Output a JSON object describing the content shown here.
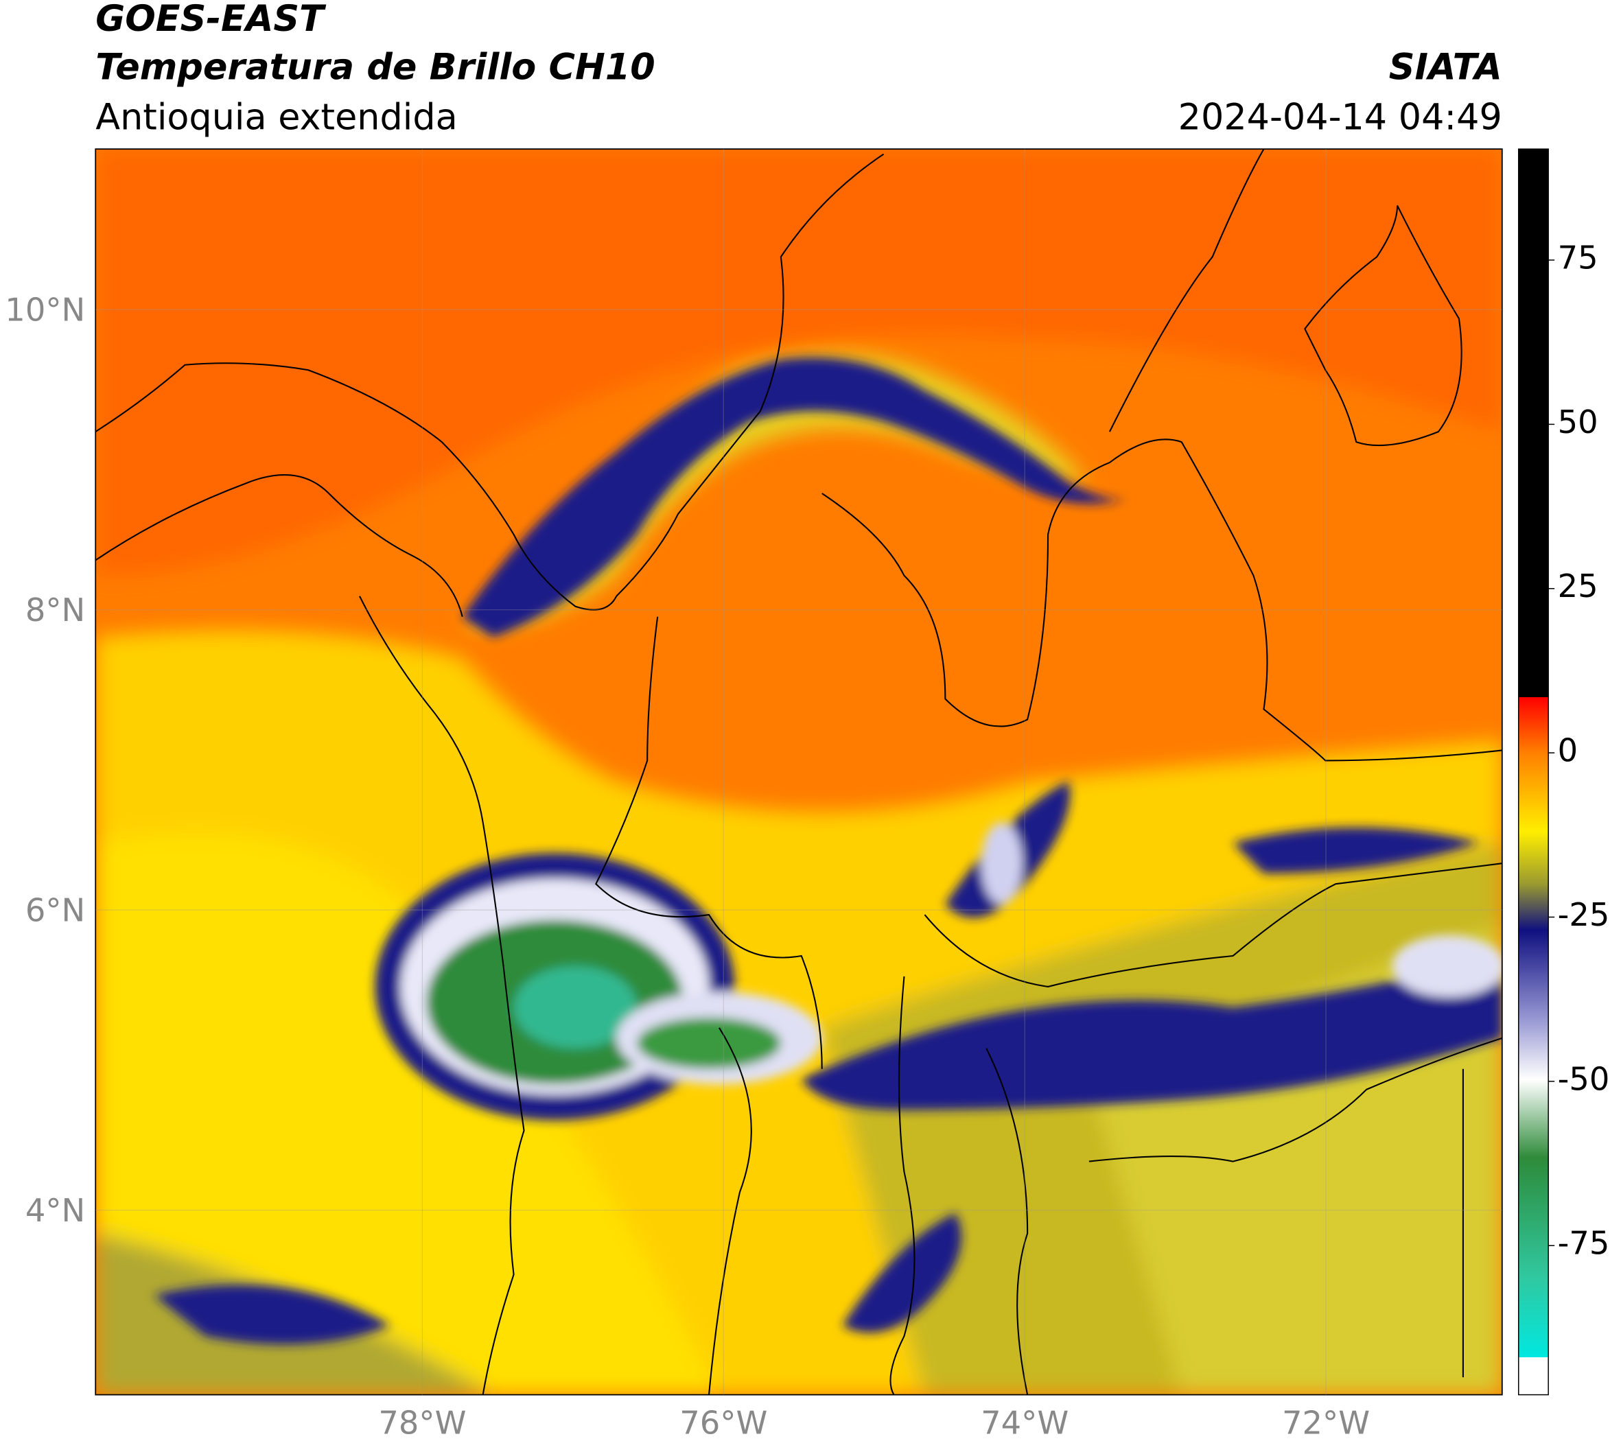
{
  "header": {
    "title": "GOES-EAST",
    "subtitle": "Temperatura de Brillo CH10",
    "region": "Antioquia extendida",
    "source": "SIATA",
    "datetime": "2024-04-14 04:49"
  },
  "chart_data": {
    "type": "map",
    "xlim": [
      -80.17,
      -70.83
    ],
    "ylim": [
      2.77,
      11.07
    ],
    "xticks": [
      {
        "value": -78,
        "label": "78°W"
      },
      {
        "value": -76,
        "label": "76°W"
      },
      {
        "value": -74,
        "label": "74°W"
      },
      {
        "value": -72,
        "label": "72°W"
      }
    ],
    "yticks": [
      {
        "value": 10,
        "label": "10°N"
      },
      {
        "value": 8,
        "label": "8°N"
      },
      {
        "value": 6,
        "label": "6°N"
      },
      {
        "value": 4,
        "label": "4°N"
      }
    ],
    "grid": true,
    "colorbar": {
      "ylim": [
        -97.7,
        91.9
      ],
      "yticks": [
        75,
        50,
        25,
        0,
        -25,
        -50,
        -75
      ]
    }
  }
}
